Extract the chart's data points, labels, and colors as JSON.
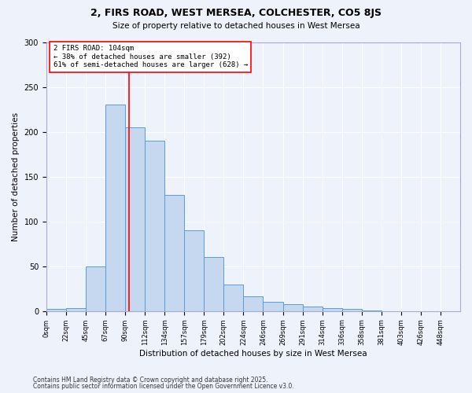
{
  "title1": "2, FIRS ROAD, WEST MERSEA, COLCHESTER, CO5 8JS",
  "title2": "Size of property relative to detached houses in West Mersea",
  "xlabel": "Distribution of detached houses by size in West Mersea",
  "ylabel": "Number of detached properties",
  "footer1": "Contains HM Land Registry data © Crown copyright and database right 2025.",
  "footer2": "Contains public sector information licensed under the Open Government Licence v3.0.",
  "bin_labels": [
    "0sqm",
    "22sqm",
    "45sqm",
    "67sqm",
    "90sqm",
    "112sqm",
    "134sqm",
    "157sqm",
    "179sqm",
    "202sqm",
    "224sqm",
    "246sqm",
    "269sqm",
    "291sqm",
    "314sqm",
    "336sqm",
    "358sqm",
    "381sqm",
    "403sqm",
    "426sqm",
    "448sqm"
  ],
  "bar_values": [
    2,
    3,
    50,
    231,
    205,
    190,
    130,
    90,
    60,
    30,
    16,
    10,
    8,
    5,
    3,
    2,
    1,
    0,
    0,
    0,
    0
  ],
  "bar_color": "#C5D8F0",
  "bar_edge_color": "#5B9BD5",
  "vline_x_idx": 4.18,
  "vline_label": "2 FIRS ROAD: 104sqm",
  "annotation_line1": "← 38% of detached houses are smaller (392)",
  "annotation_line2": "61% of semi-detached houses are larger (628) →",
  "annotation_box_color": "white",
  "annotation_box_edge": "red",
  "ylim": [
    0,
    300
  ],
  "yticks": [
    0,
    50,
    100,
    150,
    200,
    250,
    300
  ],
  "background_color": "#EEF2FB",
  "grid_color": "#FFFFFF"
}
